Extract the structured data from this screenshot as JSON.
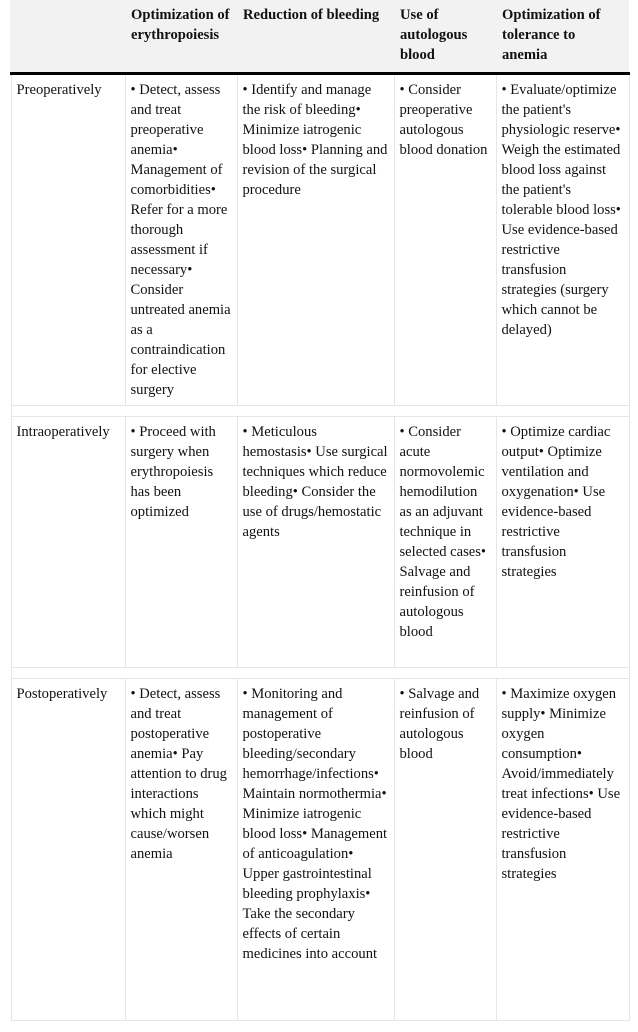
{
  "table": {
    "headers": [
      "",
      "Optimization of erythropoiesis",
      "Reduction of bleeding",
      "Use of autologous blood",
      "Optimization of tolerance to anemia"
    ],
    "rows": [
      {
        "phase": "Preoperatively",
        "cells": [
          "• Detect, assess and treat preoperative anemia• Management of comorbidities• Refer for a more thorough assessment if necessary• Consider untreated anemia as a contraindication for elective surgery",
          "• Identify and manage the risk of bleeding• Minimize iatrogenic blood loss• Planning and revision of the surgical procedure",
          "• Consider preoperative autologous blood donation",
          "• Evaluate/optimize the patient's physiologic reserve• Weigh the estimated blood loss against the patient's tolerable blood loss• Use evidence-based restrictive transfusion strategies (surgery which cannot be delayed)"
        ]
      },
      {
        "phase": "Intraoperatively",
        "cells": [
          "• Proceed with surgery when erythropoiesis has been optimized",
          "• Meticulous hemostasis• Use surgical techniques which reduce bleeding• Consider the use of drugs/hemostatic agents",
          "• Consider acute normovolemic hemodilution as an adjuvant technique in selected cases• Salvage and reinfusion of autologous blood",
          "• Optimize cardiac output• Optimize ventilation and oxygenation• Use evidence-based restrictive transfusion strategies"
        ]
      },
      {
        "phase": "Postoperatively",
        "cells": [
          "• Detect, assess and treat postoperative anemia• Pay attention to drug interactions which might cause/worsen anemia",
          "• Monitoring and management of postoperative bleeding/secondary hemorrhage/infections• Maintain normothermia• Minimize iatrogenic blood loss• Management of anticoagulation• Upper gastrointestinal bleeding prophylaxis• Take the secondary effects of certain medicines into account",
          "• Salvage and reinfusion of autologous blood",
          "• Maximize oxygen supply• Minimize oxygen consumption• Avoid/immediately treat infections• Use evidence-based restrictive transfusion strategies"
        ]
      }
    ]
  }
}
